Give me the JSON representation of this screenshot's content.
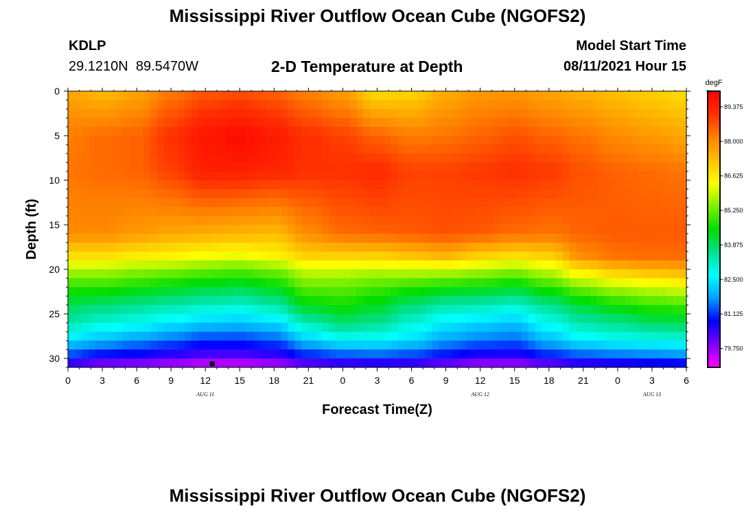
{
  "title_top": "Mississippi River Outflow Ocean Cube (NGOFS2)",
  "title_bottom": "Mississippi River Outflow Ocean Cube (NGOFS2)",
  "station": {
    "id": "KDLP",
    "coords": "29.1210N  89.5470W"
  },
  "plot_title": "2-D Temperature at Depth",
  "model_start": {
    "label": "Model Start Time",
    "value": "08/11/2021 Hour 15"
  },
  "chart_data": {
    "type": "heatmap",
    "title": "2-D Temperature at Depth",
    "xlabel": "Forecast Time(Z)",
    "ylabel": "Depth (ft)",
    "x_range_hours": [
      0,
      54
    ],
    "x_ticks": [
      "0",
      "3",
      "6",
      "9",
      "12",
      "15",
      "18",
      "21",
      "0",
      "3",
      "6",
      "9",
      "12",
      "15",
      "18",
      "21",
      "0",
      "3",
      "6"
    ],
    "date_labels": [
      {
        "text": "AUG  11",
        "hour": 12
      },
      {
        "text": "AUG  12",
        "hour": 36
      },
      {
        "text": "AUG  13",
        "hour": 51
      }
    ],
    "y_range_ft": [
      0,
      31
    ],
    "y_ticks": [
      "0",
      "5",
      "10",
      "15",
      "20",
      "25",
      "30"
    ],
    "colorbar": {
      "units": "degF",
      "min": 79.0,
      "max": 90.0,
      "labels": [
        "89.375",
        "88.000",
        "86.625",
        "85.250",
        "83.875",
        "82.500",
        "81.125",
        "79.750"
      ],
      "colors": [
        "#ff00ff",
        "#8000ff",
        "#0000ff",
        "#00a0ff",
        "#00ffff",
        "#00e090",
        "#00dd00",
        "#80f000",
        "#ffff00",
        "#ffc000",
        "#ff8000",
        "#ff3000",
        "#ff0000"
      ]
    },
    "marker": {
      "hour": 12.6,
      "depth_ft": 30.6
    },
    "profiles": [
      {
        "hour": 0,
        "depths": [
          0,
          5,
          9,
          16,
          18.5,
          20,
          22,
          24,
          26,
          28,
          30,
          31
        ],
        "temps": [
          87.6,
          88.2,
          88.3,
          88.0,
          86.8,
          85.8,
          84.8,
          84.0,
          83.4,
          82.3,
          81.0,
          80.0
        ]
      },
      {
        "hour": 3,
        "depths": [
          0,
          5,
          9,
          16,
          18.5,
          20,
          22,
          24,
          26,
          28,
          30,
          31
        ],
        "temps": [
          87.3,
          88.4,
          88.4,
          88.0,
          86.8,
          85.8,
          84.8,
          83.8,
          83.0,
          82.0,
          80.6,
          79.6
        ]
      },
      {
        "hour": 6,
        "depths": [
          0,
          5,
          9,
          16,
          18.5,
          20,
          22,
          24,
          26,
          28,
          30,
          31
        ],
        "temps": [
          87.6,
          88.5,
          88.5,
          87.8,
          86.6,
          85.6,
          84.6,
          83.6,
          82.8,
          81.7,
          80.5,
          79.5
        ]
      },
      {
        "hour": 9,
        "depths": [
          0,
          5,
          9,
          16,
          18.5,
          20,
          22,
          24,
          26,
          28,
          30,
          31
        ],
        "temps": [
          88.2,
          89.1,
          88.9,
          87.6,
          86.5,
          85.5,
          84.4,
          83.4,
          82.5,
          81.4,
          80.3,
          79.3
        ]
      },
      {
        "hour": 12,
        "depths": [
          0,
          5,
          9,
          16,
          18.5,
          20,
          22,
          24,
          26,
          28,
          30,
          31
        ],
        "temps": [
          88.6,
          89.6,
          89.4,
          87.5,
          86.3,
          85.3,
          84.2,
          83.2,
          82.2,
          81.1,
          80.1,
          79.1
        ]
      },
      {
        "hour": 15,
        "depths": [
          0,
          5,
          9,
          16,
          18.5,
          20,
          22,
          24,
          26,
          28,
          30,
          31
        ],
        "temps": [
          88.7,
          89.8,
          89.4,
          87.4,
          86.2,
          85.2,
          84.1,
          83.1,
          82.1,
          81.1,
          80.1,
          79.1
        ]
      },
      {
        "hour": 18,
        "depths": [
          0,
          5,
          9,
          16,
          18.5,
          20,
          22,
          24,
          26,
          28,
          30,
          31
        ],
        "temps": [
          88.5,
          89.5,
          89.3,
          87.3,
          86.5,
          85.4,
          84.4,
          83.4,
          82.3,
          81.3,
          80.3,
          79.3
        ]
      },
      {
        "hour": 21,
        "depths": [
          0,
          5,
          9,
          16,
          18.5,
          20,
          22,
          24,
          26,
          28,
          30,
          31
        ],
        "temps": [
          88.1,
          89.1,
          89.1,
          88.0,
          87.0,
          86.0,
          85.2,
          84.4,
          83.3,
          82.1,
          80.8,
          79.8
        ]
      },
      {
        "hour": 24,
        "depths": [
          0,
          5,
          9,
          16,
          18.5,
          20,
          22,
          24,
          26,
          28,
          30,
          31
        ],
        "temps": [
          87.7,
          88.9,
          89.1,
          88.4,
          87.0,
          86.0,
          85.2,
          84.6,
          83.8,
          82.6,
          81.0,
          80.0
        ]
      },
      {
        "hour": 27,
        "depths": [
          0,
          5,
          9,
          16,
          18.5,
          20,
          22,
          24,
          26,
          28,
          30,
          31
        ],
        "temps": [
          86.8,
          88.5,
          89.2,
          88.5,
          87.0,
          85.9,
          85.0,
          84.3,
          83.6,
          82.6,
          81.1,
          80.1
        ]
      },
      {
        "hour": 30,
        "depths": [
          0,
          5,
          9,
          16,
          18.5,
          20,
          22,
          24,
          26,
          28,
          30,
          31
        ],
        "temps": [
          86.9,
          88.2,
          88.9,
          88.6,
          87.2,
          86.0,
          84.8,
          83.8,
          83.0,
          82.3,
          81.0,
          80.0
        ]
      },
      {
        "hour": 33,
        "depths": [
          0,
          5,
          9,
          16,
          18.5,
          20,
          22,
          24,
          26,
          28,
          30,
          31
        ],
        "temps": [
          87.5,
          88.3,
          88.9,
          88.7,
          87.4,
          86.0,
          84.6,
          83.4,
          82.5,
          81.8,
          80.7,
          79.7
        ]
      },
      {
        "hour": 36,
        "depths": [
          0,
          5,
          9,
          16,
          18.5,
          20,
          22,
          24,
          26,
          28,
          30,
          31
        ],
        "temps": [
          87.8,
          88.5,
          89.0,
          88.6,
          87.0,
          85.8,
          84.5,
          83.3,
          82.3,
          81.5,
          80.4,
          79.4
        ]
      },
      {
        "hour": 39,
        "depths": [
          0,
          5,
          9,
          16,
          18.5,
          20,
          22,
          24,
          26,
          28,
          30,
          31
        ],
        "temps": [
          87.8,
          88.7,
          89.1,
          88.4,
          86.8,
          85.6,
          84.3,
          83.1,
          82.1,
          81.4,
          80.4,
          79.4
        ]
      },
      {
        "hour": 42,
        "depths": [
          0,
          5,
          9,
          16,
          18.5,
          20,
          22,
          24,
          26,
          28,
          30,
          31
        ],
        "temps": [
          87.6,
          88.5,
          89.0,
          88.3,
          87.0,
          86.0,
          84.8,
          83.6,
          82.8,
          82.0,
          80.8,
          79.8
        ]
      },
      {
        "hour": 45,
        "depths": [
          0,
          5,
          9,
          16,
          18.5,
          20,
          22,
          24,
          26,
          28,
          30,
          31
        ],
        "temps": [
          87.4,
          88.3,
          88.7,
          88.5,
          88.0,
          86.8,
          85.4,
          84.2,
          83.4,
          82.5,
          81.1,
          80.1
        ]
      },
      {
        "hour": 48,
        "depths": [
          0,
          5,
          9,
          16,
          18.5,
          20,
          22,
          24,
          26,
          28,
          30,
          31
        ],
        "temps": [
          87.2,
          88.0,
          88.5,
          88.6,
          88.3,
          87.3,
          85.8,
          84.6,
          83.6,
          82.7,
          81.2,
          80.2
        ]
      },
      {
        "hour": 51,
        "depths": [
          0,
          5,
          9,
          16,
          18.5,
          20,
          22,
          24,
          26,
          28,
          30,
          31
        ],
        "temps": [
          87.0,
          87.8,
          88.4,
          88.6,
          88.4,
          87.5,
          86.0,
          84.9,
          83.9,
          82.8,
          81.3,
          80.3
        ]
      },
      {
        "hour": 54,
        "depths": [
          0,
          5,
          9,
          16,
          18.5,
          20,
          22,
          24,
          26,
          28,
          30,
          31
        ],
        "temps": [
          86.8,
          87.6,
          88.3,
          88.6,
          88.4,
          87.6,
          86.2,
          85.0,
          84.0,
          82.9,
          81.4,
          80.4
        ]
      }
    ]
  }
}
